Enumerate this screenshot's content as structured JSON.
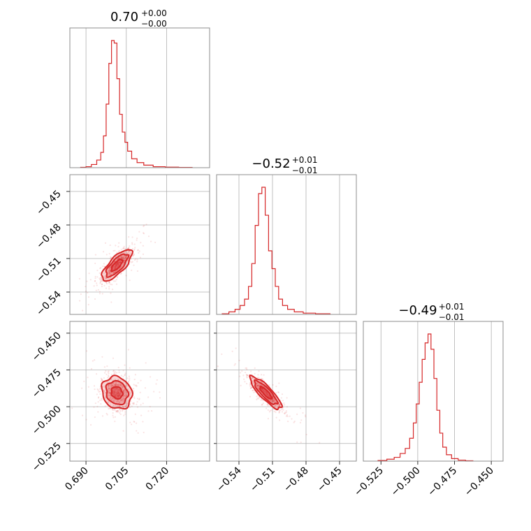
{
  "chart_data": {
    "type": "corner",
    "color": "#d62728",
    "params": [
      {
        "key": "p1",
        "range": [
          0.684,
          0.736
        ],
        "ticks": [
          0.69,
          0.705,
          0.72
        ],
        "tick_labels": [
          "0.690",
          "0.705",
          "0.720"
        ],
        "title": {
          "value": "0.70",
          "plus": "+0.00",
          "minus": "−0.00"
        },
        "mean": 0.7015,
        "std": 0.0028,
        "hist": [
          {
            "x": 0.689,
            "y": 0.003
          },
          {
            "x": 0.691,
            "y": 0.008
          },
          {
            "x": 0.693,
            "y": 0.025
          },
          {
            "x": 0.695,
            "y": 0.06
          },
          {
            "x": 0.696,
            "y": 0.12
          },
          {
            "x": 0.697,
            "y": 0.25
          },
          {
            "x": 0.698,
            "y": 0.5
          },
          {
            "x": 0.699,
            "y": 0.82
          },
          {
            "x": 0.7,
            "y": 1.0
          },
          {
            "x": 0.701,
            "y": 0.98
          },
          {
            "x": 0.702,
            "y": 0.7
          },
          {
            "x": 0.703,
            "y": 0.42
          },
          {
            "x": 0.704,
            "y": 0.28
          },
          {
            "x": 0.705,
            "y": 0.2
          },
          {
            "x": 0.706,
            "y": 0.13
          },
          {
            "x": 0.708,
            "y": 0.07
          },
          {
            "x": 0.71,
            "y": 0.04
          },
          {
            "x": 0.713,
            "y": 0.02
          },
          {
            "x": 0.717,
            "y": 0.008
          },
          {
            "x": 0.722,
            "y": 0.004
          },
          {
            "x": 0.727,
            "y": 0.002
          }
        ]
      },
      {
        "key": "p2",
        "range": [
          -0.56,
          -0.435
        ],
        "ticks": [
          -0.54,
          -0.51,
          -0.48,
          -0.45
        ],
        "tick_labels": [
          "−0.54",
          "−0.51",
          "−0.48",
          "−0.45"
        ],
        "title": {
          "value": "−0.52",
          "plus": "+0.01",
          "minus": "−0.01"
        },
        "mean": -0.516,
        "std": 0.007,
        "hist": [
          {
            "x": -0.552,
            "y": 0.005
          },
          {
            "x": -0.546,
            "y": 0.02
          },
          {
            "x": -0.541,
            "y": 0.04
          },
          {
            "x": -0.537,
            "y": 0.07
          },
          {
            "x": -0.533,
            "y": 0.12
          },
          {
            "x": -0.53,
            "y": 0.22
          },
          {
            "x": -0.527,
            "y": 0.4
          },
          {
            "x": -0.524,
            "y": 0.7
          },
          {
            "x": -0.521,
            "y": 0.95
          },
          {
            "x": -0.518,
            "y": 1.0
          },
          {
            "x": -0.515,
            "y": 0.78
          },
          {
            "x": -0.512,
            "y": 0.5
          },
          {
            "x": -0.509,
            "y": 0.36
          },
          {
            "x": -0.506,
            "y": 0.22
          },
          {
            "x": -0.503,
            "y": 0.12
          },
          {
            "x": -0.499,
            "y": 0.07
          },
          {
            "x": -0.494,
            "y": 0.04
          },
          {
            "x": -0.487,
            "y": 0.02
          },
          {
            "x": -0.478,
            "y": 0.01
          },
          {
            "x": -0.465,
            "y": 0.005
          }
        ]
      },
      {
        "key": "p3",
        "range": [
          -0.537,
          -0.442
        ],
        "ticks": [
          -0.525,
          -0.5,
          -0.475,
          -0.45
        ],
        "tick_labels": [
          "−0.525",
          "−0.500",
          "−0.475",
          "−0.450"
        ],
        "title": {
          "value": "−0.49",
          "plus": "+0.01",
          "minus": "−0.01"
        },
        "mean": -0.4905,
        "std": 0.0055,
        "hist": [
          {
            "x": -0.524,
            "y": 0.005
          },
          {
            "x": -0.518,
            "y": 0.015
          },
          {
            "x": -0.514,
            "y": 0.03
          },
          {
            "x": -0.51,
            "y": 0.06
          },
          {
            "x": -0.507,
            "y": 0.1
          },
          {
            "x": -0.504,
            "y": 0.18
          },
          {
            "x": -0.502,
            "y": 0.3
          },
          {
            "x": -0.5,
            "y": 0.45
          },
          {
            "x": -0.498,
            "y": 0.62
          },
          {
            "x": -0.496,
            "y": 0.8
          },
          {
            "x": -0.494,
            "y": 0.93
          },
          {
            "x": -0.492,
            "y": 1.0
          },
          {
            "x": -0.49,
            "y": 0.88
          },
          {
            "x": -0.488,
            "y": 0.65
          },
          {
            "x": -0.486,
            "y": 0.4
          },
          {
            "x": -0.484,
            "y": 0.22
          },
          {
            "x": -0.482,
            "y": 0.11
          },
          {
            "x": -0.479,
            "y": 0.05
          },
          {
            "x": -0.475,
            "y": 0.02
          },
          {
            "x": -0.47,
            "y": 0.008
          },
          {
            "x": -0.465,
            "y": 0.003
          }
        ]
      }
    ],
    "correlations": {
      "p2_p1": 0.75,
      "p3_p1": -0.15,
      "p3_p2": -0.85
    }
  }
}
